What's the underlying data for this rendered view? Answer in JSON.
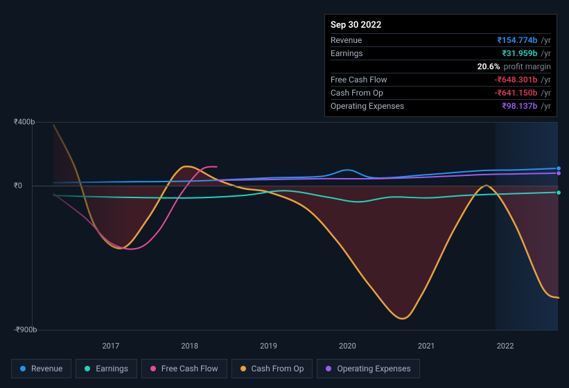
{
  "tooltip": {
    "date": "Sep 30 2022",
    "rows": [
      {
        "label": "Revenue",
        "value": "₹154.774b",
        "suffix": "/yr",
        "color": "#2593f5"
      },
      {
        "label": "Earnings",
        "value": "₹31.959b",
        "suffix": "/yr",
        "color": "#1fd3bc"
      },
      {
        "label": "",
        "value": "20.6%",
        "suffix": "profit margin",
        "color": "#ffffff"
      },
      {
        "label": "Free Cash Flow",
        "value": "-₹648.301b",
        "suffix": "/yr",
        "color": "#d93a56"
      },
      {
        "label": "Cash From Op",
        "value": "-₹641.150b",
        "suffix": "/yr",
        "color": "#d93a56"
      },
      {
        "label": "Operating Expenses",
        "value": "₹98.137b",
        "suffix": "/yr",
        "color": "#9a5cf0"
      }
    ]
  },
  "chart": {
    "type": "line",
    "background_color": "#0e1621",
    "grid_color": "#2a3340",
    "currency_prefix": "₹",
    "ylim": [
      -900,
      400
    ],
    "y_ticks": [
      {
        "v": 400,
        "label": "₹400b"
      },
      {
        "v": 0,
        "label": "₹0"
      },
      {
        "v": -900,
        "label": "-₹900b"
      }
    ],
    "x_labels": [
      "2017",
      "2018",
      "2019",
      "2020",
      "2021",
      "2022"
    ],
    "x_positions": [
      0.15,
      0.3,
      0.45,
      0.6,
      0.75,
      0.9
    ],
    "forecast_start_x": 0.88,
    "series": [
      {
        "name": "Cash From Op",
        "color": "#e8a23c",
        "fill": "rgba(150,40,50,0.35)",
        "width": 2.5,
        "points": [
          [
            0.04,
            380
          ],
          [
            0.08,
            120
          ],
          [
            0.12,
            -260
          ],
          [
            0.17,
            -390
          ],
          [
            0.22,
            -200
          ],
          [
            0.27,
            70
          ],
          [
            0.3,
            120
          ],
          [
            0.35,
            40
          ],
          [
            0.4,
            -15
          ],
          [
            0.45,
            -40
          ],
          [
            0.52,
            -140
          ],
          [
            0.58,
            -350
          ],
          [
            0.64,
            -620
          ],
          [
            0.7,
            -830
          ],
          [
            0.74,
            -680
          ],
          [
            0.8,
            -280
          ],
          [
            0.85,
            -20
          ],
          [
            0.88,
            -40
          ],
          [
            0.92,
            -260
          ],
          [
            0.97,
            -640
          ],
          [
            1.0,
            -700
          ]
        ]
      },
      {
        "name": "Free Cash Flow",
        "color": "#e84a9c",
        "width": 2,
        "points": [
          [
            0.04,
            -50
          ],
          [
            0.1,
            -200
          ],
          [
            0.15,
            -360
          ],
          [
            0.2,
            -390
          ],
          [
            0.24,
            -280
          ],
          [
            0.28,
            -60
          ],
          [
            0.32,
            100
          ],
          [
            0.35,
            120
          ]
        ]
      },
      {
        "name": "Revenue",
        "color": "#2593f5",
        "width": 2,
        "points": [
          [
            0.04,
            20
          ],
          [
            0.15,
            25
          ],
          [
            0.3,
            30
          ],
          [
            0.45,
            50
          ],
          [
            0.55,
            60
          ],
          [
            0.6,
            100
          ],
          [
            0.65,
            50
          ],
          [
            0.75,
            70
          ],
          [
            0.85,
            95
          ],
          [
            0.92,
            100
          ],
          [
            1.0,
            110
          ]
        ],
        "end_dot": true
      },
      {
        "name": "Operating Expenses",
        "color": "#9a5cf0",
        "width": 2,
        "points": [
          [
            0.35,
            35
          ],
          [
            0.45,
            40
          ],
          [
            0.55,
            45
          ],
          [
            0.65,
            45
          ],
          [
            0.75,
            55
          ],
          [
            0.85,
            70
          ],
          [
            0.92,
            75
          ],
          [
            1.0,
            80
          ]
        ],
        "end_dot": true
      },
      {
        "name": "Earnings",
        "color": "#1fd3bc",
        "width": 2,
        "points": [
          [
            0.04,
            -60
          ],
          [
            0.15,
            -70
          ],
          [
            0.3,
            -75
          ],
          [
            0.4,
            -60
          ],
          [
            0.48,
            -30
          ],
          [
            0.56,
            -70
          ],
          [
            0.62,
            -100
          ],
          [
            0.68,
            -70
          ],
          [
            0.75,
            -75
          ],
          [
            0.82,
            -60
          ],
          [
            0.9,
            -50
          ],
          [
            1.0,
            -40
          ]
        ],
        "end_dot": true
      }
    ],
    "legend": [
      {
        "label": "Revenue",
        "color": "#2593f5"
      },
      {
        "label": "Earnings",
        "color": "#1fd3bc"
      },
      {
        "label": "Free Cash Flow",
        "color": "#e84a9c"
      },
      {
        "label": "Cash From Op",
        "color": "#e8a23c"
      },
      {
        "label": "Operating Expenses",
        "color": "#9a5cf0"
      }
    ]
  }
}
